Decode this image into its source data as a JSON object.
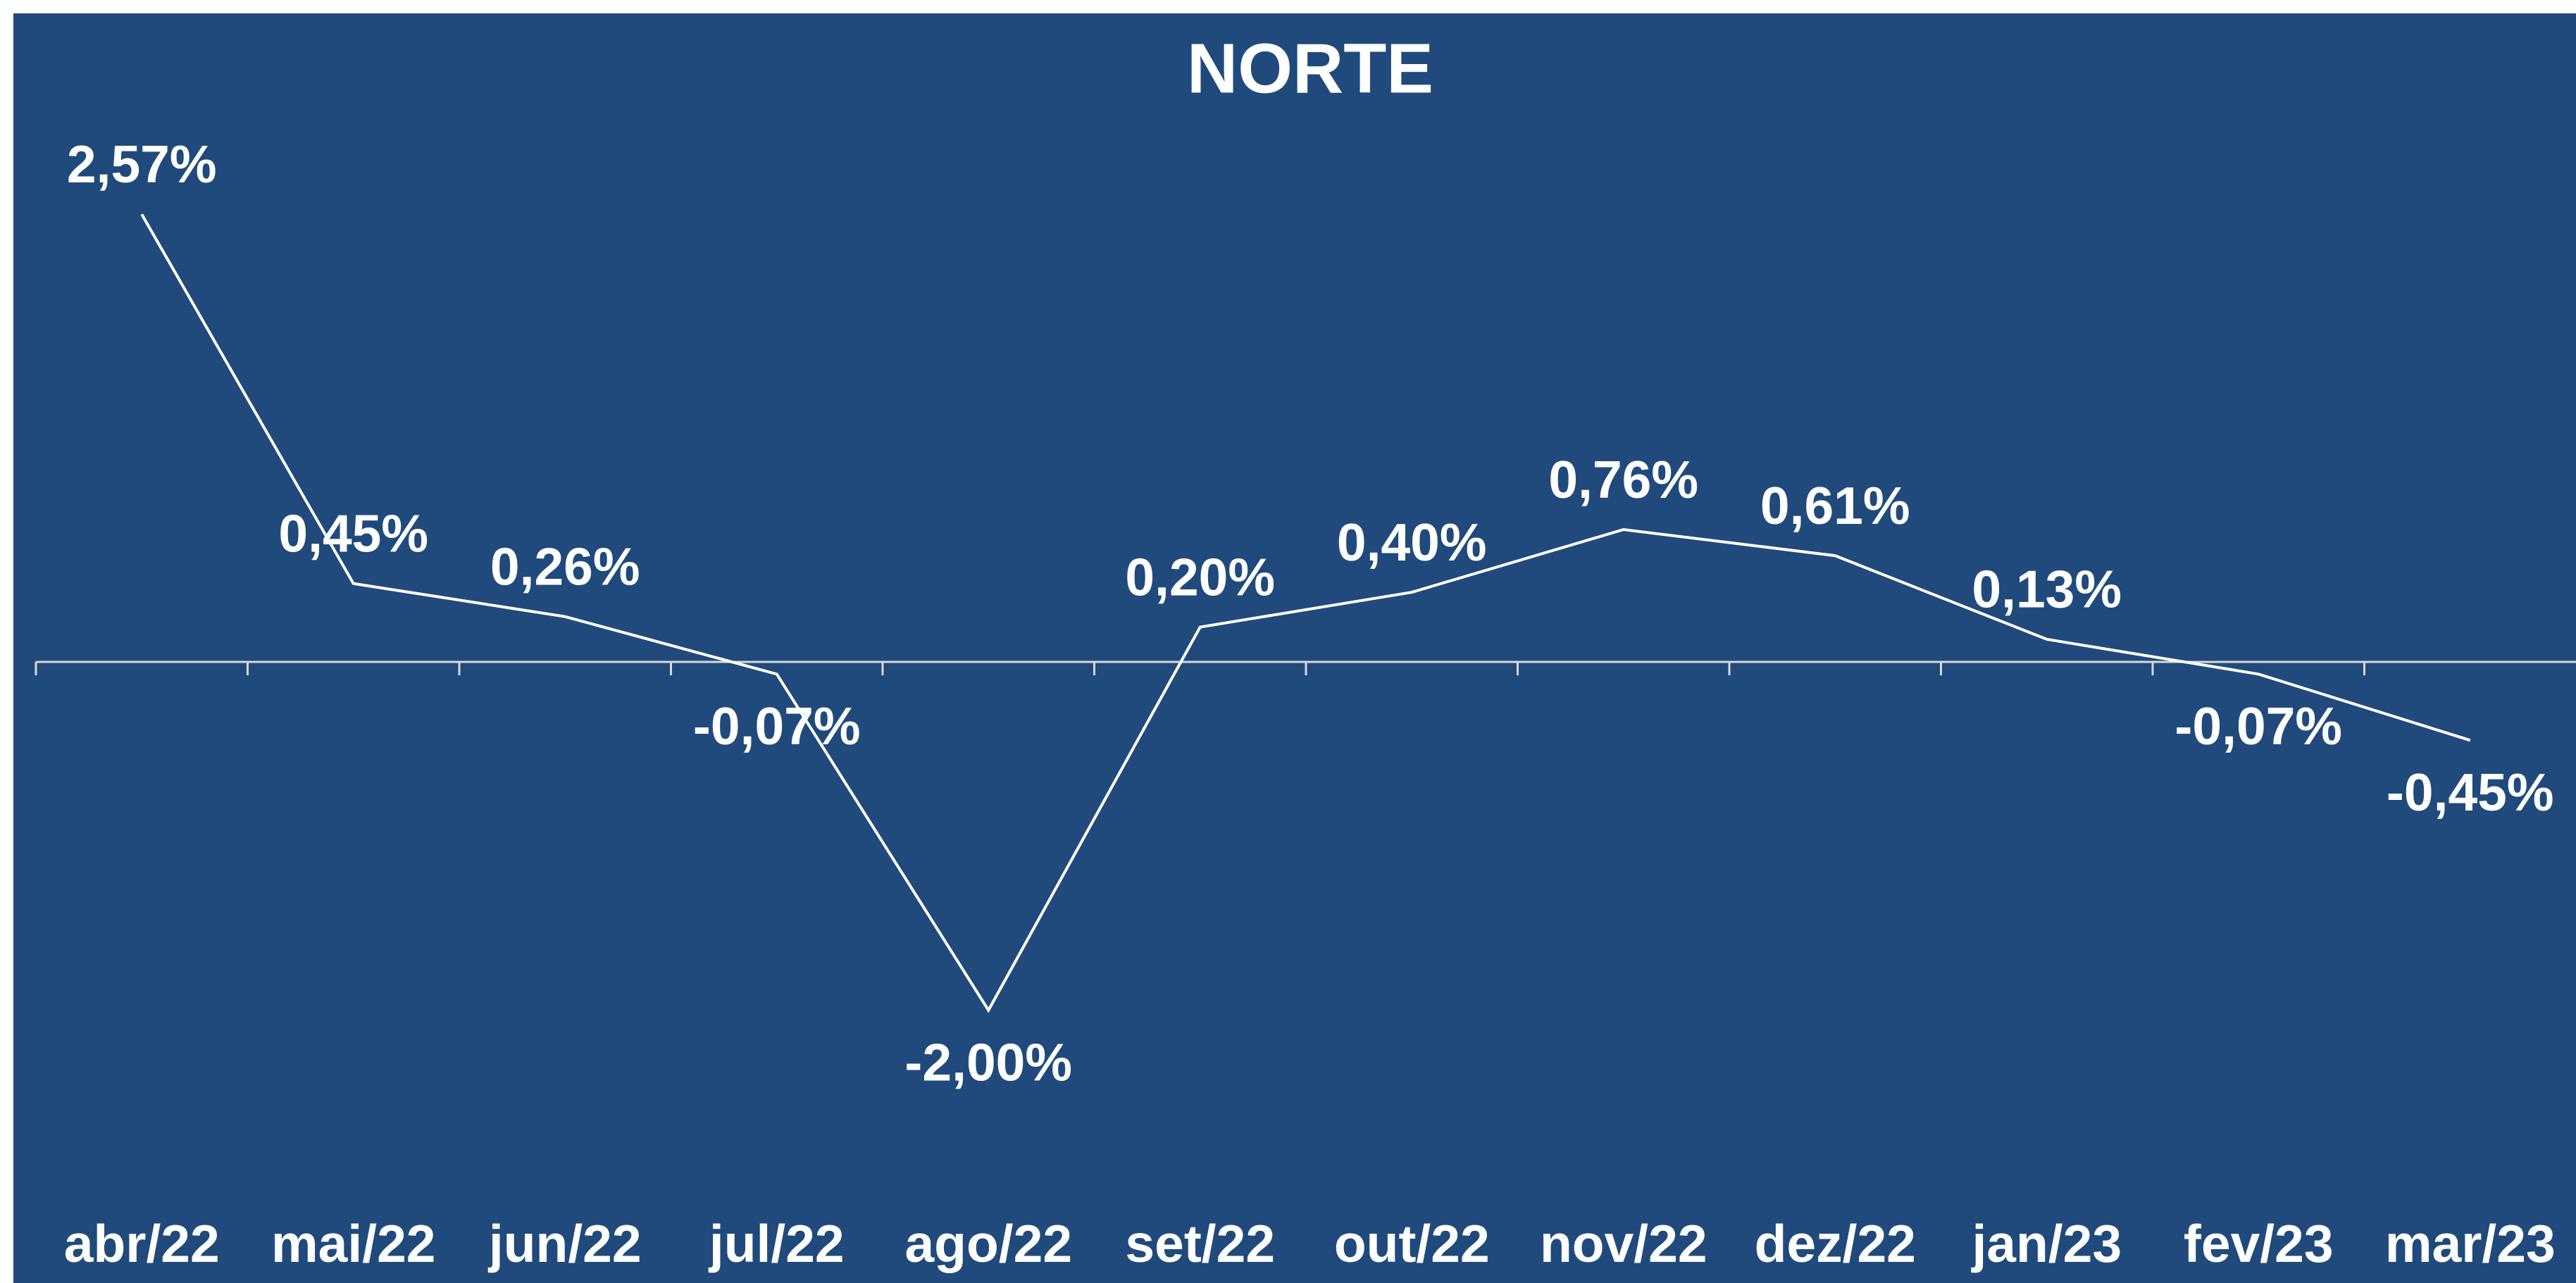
{
  "chart_data": {
    "type": "line",
    "title": "NORTE",
    "categories": [
      "abr/22",
      "mai/22",
      "jun/22",
      "jul/22",
      "ago/22",
      "set/22",
      "out/22",
      "nov/22",
      "dez/22",
      "jan/23",
      "fev/23",
      "mar/23"
    ],
    "values": [
      2.57,
      0.45,
      0.26,
      -0.07,
      -2.0,
      0.2,
      0.4,
      0.76,
      0.61,
      0.13,
      -0.07,
      -0.45
    ],
    "value_labels": [
      "2,57%",
      "0,45%",
      "0,26%",
      "-0,07%",
      "-2,00%",
      "0,20%",
      "0,40%",
      "0,76%",
      "0,61%",
      "0,13%",
      "-0,07%",
      "-0,45%"
    ],
    "color": "#ffffff",
    "ylim": [
      -3,
      3
    ]
  }
}
